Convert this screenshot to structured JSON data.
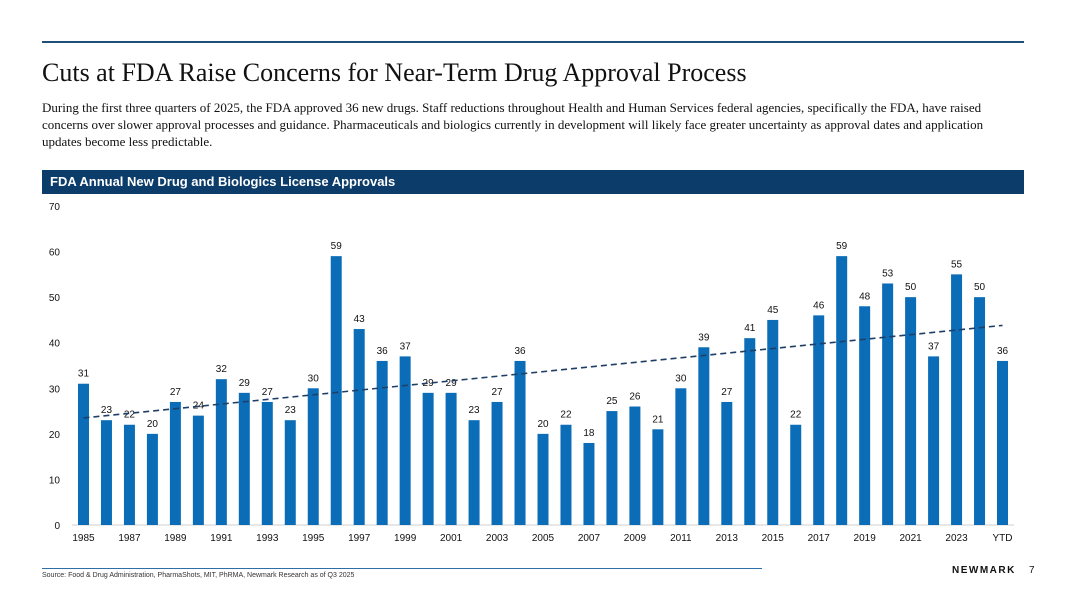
{
  "page": {
    "title": "Cuts at FDA Raise Concerns for Near-Term Drug Approval Process",
    "subtitle": "During the first three quarters of 2025, the FDA approved 36 new drugs. Staff reductions throughout Health and Human Services federal agencies, specifically the FDA, have raised concerns over slower approval processes and guidance. Pharmaceuticals and biologics currently in development will likely face greater uncertainty as approval dates and application updates become less predictable.",
    "chart_header": "FDA Annual New Drug and Biologics License Approvals",
    "source": "Source: Food & Drug Administration, PharmaShots, MIT, PhRMA, Newmark Research as of Q3 2025",
    "logo": "NEWMARK",
    "page_number": "7"
  },
  "colors": {
    "bar": "#0b6db7",
    "trend": "#1f3f66",
    "header_bg": "#0b3c6a",
    "rule": "#1f4e79"
  },
  "chart_data": {
    "type": "bar",
    "title": "FDA Annual New Drug and Biologics License Approvals",
    "xlabel": "",
    "ylabel": "",
    "ylim": [
      0,
      70
    ],
    "yticks": [
      0,
      10,
      20,
      30,
      40,
      50,
      60,
      70
    ],
    "categories": [
      "1985",
      "1986",
      "1987",
      "1988",
      "1989",
      "1990",
      "1991",
      "1992",
      "1993",
      "1994",
      "1995",
      "1996",
      "1997",
      "1998",
      "1999",
      "2000",
      "2001",
      "2002",
      "2003",
      "2004",
      "2005",
      "2006",
      "2007",
      "2008",
      "2009",
      "2010",
      "2011",
      "2012",
      "2013",
      "2014",
      "2015",
      "2016",
      "2017",
      "2018",
      "2019",
      "2020",
      "2021",
      "2022",
      "2023",
      "2024",
      "YTD"
    ],
    "values": [
      31,
      23,
      22,
      20,
      27,
      24,
      32,
      29,
      27,
      23,
      30,
      59,
      43,
      36,
      37,
      29,
      29,
      23,
      27,
      36,
      20,
      22,
      18,
      25,
      26,
      21,
      30,
      39,
      27,
      41,
      45,
      22,
      46,
      59,
      48,
      53,
      50,
      37,
      55,
      50,
      36
    ],
    "x_tick_labels": [
      "1985",
      "1987",
      "1989",
      "1991",
      "1993",
      "1995",
      "1997",
      "1999",
      "2001",
      "2003",
      "2005",
      "2007",
      "2009",
      "2011",
      "2013",
      "2015",
      "2017",
      "2019",
      "2021",
      "2023",
      "YTD"
    ],
    "trendline": {
      "style": "dashed",
      "type": "linear",
      "start": 23.5,
      "end": 43.8
    },
    "data_labels": true,
    "grid": false
  }
}
